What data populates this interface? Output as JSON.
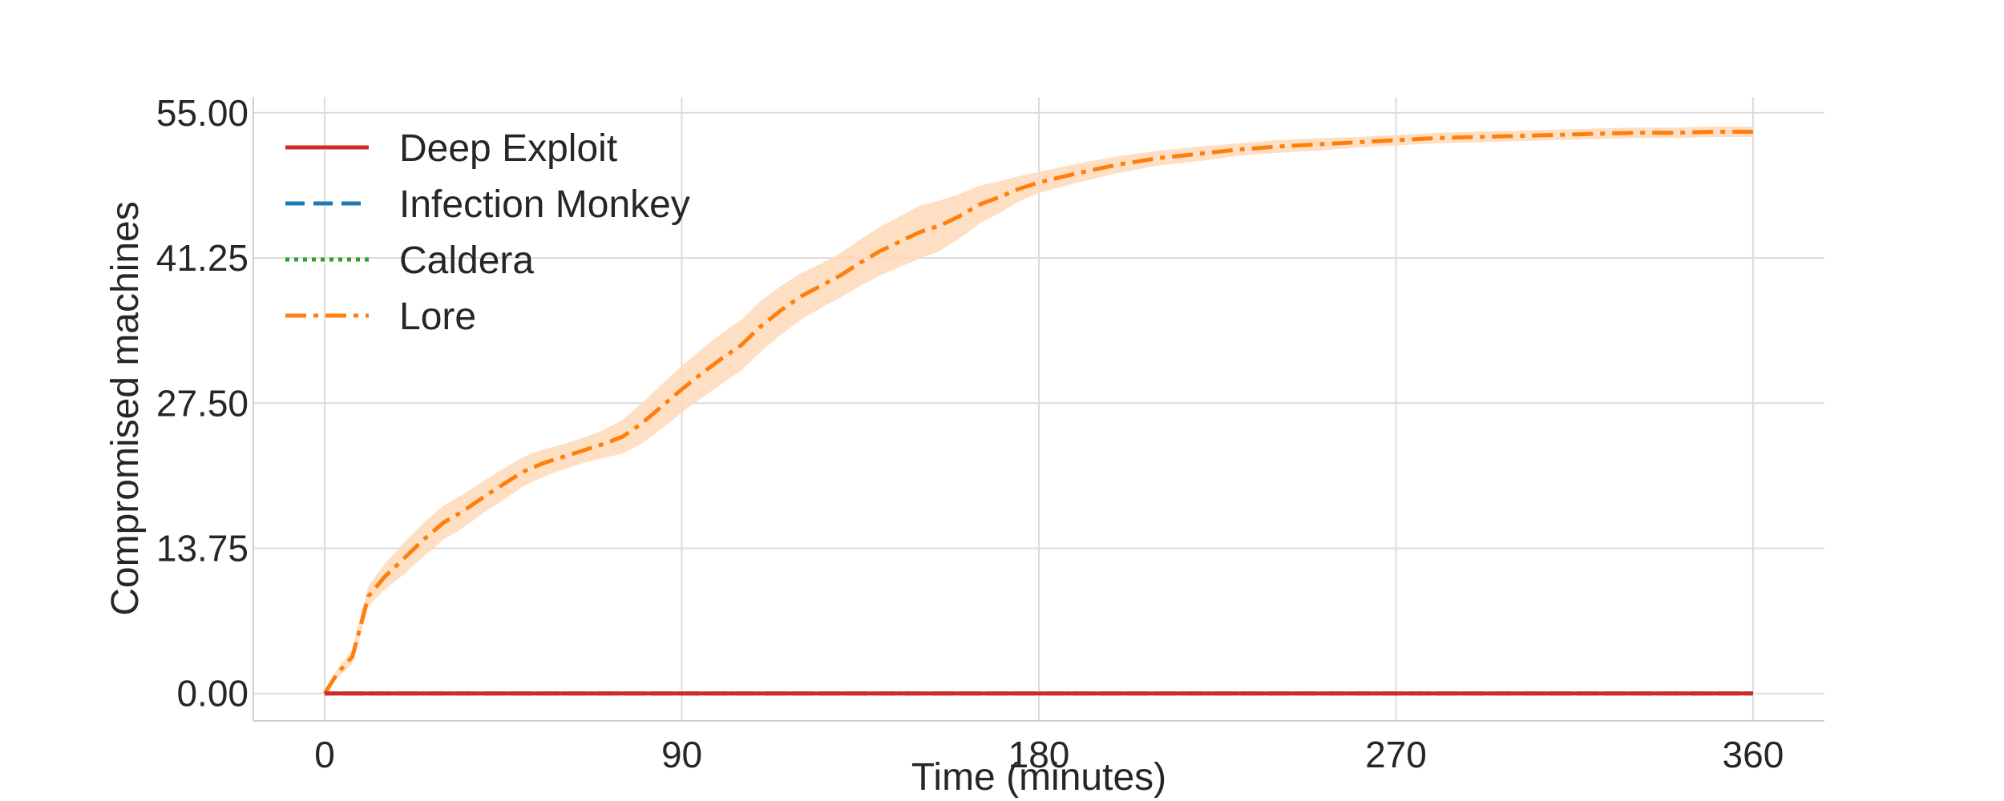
{
  "chart_data": {
    "type": "line",
    "title": "",
    "xlabel": "Time (minutes)",
    "ylabel": "Compromised machines",
    "xlim": [
      -18,
      378
    ],
    "ylim": [
      -2.6,
      56.5
    ],
    "xticks": [
      0,
      90,
      180,
      270,
      360
    ],
    "xtick_labels": [
      "0",
      "90",
      "180",
      "270",
      "360"
    ],
    "yticks": [
      0,
      13.75,
      27.5,
      41.25,
      55
    ],
    "ytick_labels": [
      "0.00",
      "13.75",
      "27.50",
      "41.25",
      "55.00"
    ],
    "grid": true,
    "legend_position": "top-left",
    "series": [
      {
        "name": "Deep Exploit",
        "color": "#d62728",
        "dash": "solid",
        "x": [
          0,
          360
        ],
        "y": [
          0,
          0
        ]
      },
      {
        "name": "Infection Monkey",
        "color": "#1f77b4",
        "dash": "dashed",
        "x": [
          0,
          360
        ],
        "y": [
          0,
          0
        ]
      },
      {
        "name": "Caldera",
        "color": "#2ca02c",
        "dash": "dotted",
        "x": [
          0,
          360
        ],
        "y": [
          0,
          0
        ]
      },
      {
        "name": "Lore",
        "color": "#ff7f0e",
        "dash": "dashdot",
        "band_color": "#ffd9b8",
        "x": [
          0,
          3,
          7,
          11,
          15,
          20,
          25,
          30,
          35,
          40,
          45,
          50,
          55,
          60,
          65,
          70,
          75,
          80,
          85,
          90,
          95,
          100,
          105,
          110,
          115,
          120,
          125,
          130,
          135,
          140,
          145,
          150,
          155,
          160,
          165,
          170,
          175,
          180,
          190,
          200,
          210,
          220,
          230,
          240,
          250,
          260,
          270,
          280,
          290,
          300,
          310,
          320,
          330,
          340,
          350,
          360
        ],
        "y": [
          0,
          1.8,
          3.5,
          9.2,
          11.0,
          12.8,
          14.6,
          16.2,
          17.3,
          18.6,
          19.8,
          21.0,
          21.8,
          22.4,
          23.0,
          23.6,
          24.3,
          25.6,
          27.2,
          28.8,
          30.3,
          31.7,
          33.0,
          34.8,
          36.3,
          37.6,
          38.6,
          39.6,
          40.8,
          41.9,
          42.8,
          43.7,
          44.3,
          45.2,
          46.3,
          47.0,
          47.8,
          48.4,
          49.3,
          50.1,
          50.7,
          51.1,
          51.5,
          51.8,
          52.0,
          52.2,
          52.4,
          52.6,
          52.7,
          52.8,
          52.9,
          53.0,
          53.1,
          53.1,
          53.2,
          53.2
        ],
        "band_width": [
          0,
          0.4,
          0.7,
          1.0,
          1.2,
          1.5,
          1.6,
          1.6,
          1.6,
          1.5,
          1.5,
          1.4,
          1.3,
          1.2,
          1.2,
          1.3,
          1.6,
          1.9,
          2.1,
          2.2,
          2.3,
          2.4,
          2.4,
          2.4,
          2.3,
          2.2,
          2.1,
          2.1,
          2.2,
          2.3,
          2.4,
          2.5,
          2.4,
          2.1,
          1.8,
          1.5,
          1.2,
          1.0,
          0.9,
          0.8,
          0.7,
          0.7,
          0.6,
          0.6,
          0.6,
          0.5,
          0.5,
          0.5,
          0.5,
          0.5,
          0.5,
          0.5,
          0.5,
          0.5,
          0.5,
          0.5
        ]
      }
    ]
  }
}
